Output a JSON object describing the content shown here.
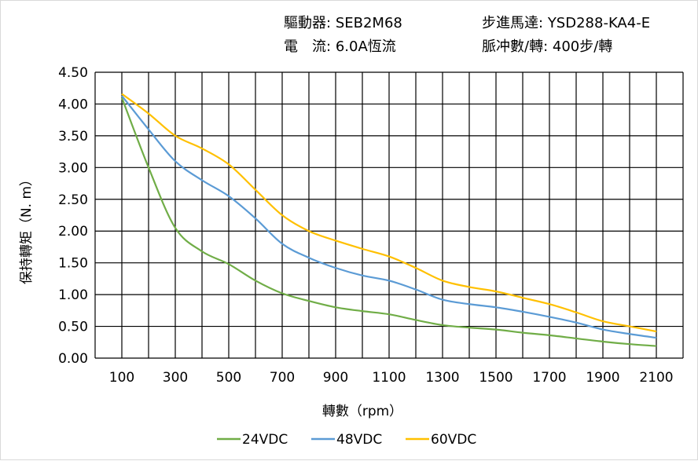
{
  "header": {
    "driver_label": "驅動器:",
    "driver_value": "SEB2M68",
    "motor_label": "步進馬達:",
    "motor_value": "YSD288-KA4-E",
    "current_label": "電　流:",
    "current_value": "6.0A恆流",
    "pulse_label": "脈冲數/轉:",
    "pulse_value": "400步/轉"
  },
  "chart_data": {
    "type": "line",
    "title": "",
    "xlabel": "轉數（rpm）",
    "ylabel": "保持轉矩（N. m）",
    "x": [
      100,
      200,
      300,
      400,
      500,
      600,
      700,
      800,
      900,
      1000,
      1100,
      1200,
      1300,
      1400,
      1500,
      1600,
      1700,
      1800,
      1900,
      2000,
      2100
    ],
    "xticks": [
      "100",
      "300",
      "500",
      "700",
      "900",
      "1100",
      "1300",
      "1500",
      "1700",
      "1900",
      "2100"
    ],
    "yticks": [
      "0.00",
      "0.50",
      "1.00",
      "1.50",
      "2.00",
      "2.50",
      "3.00",
      "3.50",
      "4.00",
      "4.50"
    ],
    "xlim": [
      0,
      2200
    ],
    "ylim": [
      0,
      4.5
    ],
    "grid": true,
    "legend_position": "bottom",
    "series": [
      {
        "name": "24VDC",
        "color": "#70ad47",
        "values": [
          4.1,
          3.0,
          2.05,
          1.68,
          1.48,
          1.22,
          1.02,
          0.9,
          0.8,
          0.74,
          0.69,
          0.6,
          0.52,
          0.48,
          0.45,
          0.4,
          0.36,
          0.31,
          0.26,
          0.22,
          0.19
        ]
      },
      {
        "name": "48VDC",
        "color": "#5b9bd5",
        "values": [
          4.13,
          3.6,
          3.1,
          2.8,
          2.55,
          2.2,
          1.8,
          1.58,
          1.42,
          1.3,
          1.22,
          1.08,
          0.92,
          0.85,
          0.8,
          0.73,
          0.65,
          0.56,
          0.45,
          0.38,
          0.32
        ]
      },
      {
        "name": "60VDC",
        "color": "#ffc000",
        "values": [
          4.16,
          3.85,
          3.5,
          3.3,
          3.05,
          2.65,
          2.25,
          2.0,
          1.85,
          1.72,
          1.6,
          1.42,
          1.22,
          1.12,
          1.05,
          0.95,
          0.85,
          0.72,
          0.58,
          0.5,
          0.42
        ]
      }
    ]
  }
}
